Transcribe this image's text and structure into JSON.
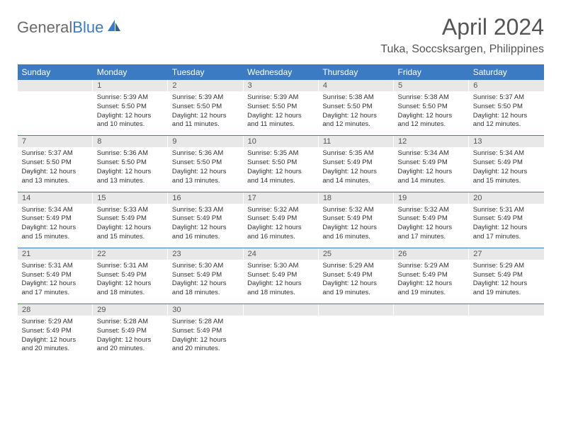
{
  "logo": {
    "g": "General",
    "b": "Blue"
  },
  "title": "April 2024",
  "location": "Tuka, Soccsksargen, Philippines",
  "colors": {
    "header_bg": "#3b7bc4",
    "header_fg": "#ffffff",
    "daynum_bg": "#e8e8e8",
    "text": "#333333",
    "logo_gray": "#6b6b6b",
    "logo_blue": "#3b7bc4"
  },
  "weekdays": [
    "Sunday",
    "Monday",
    "Tuesday",
    "Wednesday",
    "Thursday",
    "Friday",
    "Saturday"
  ],
  "weeks": [
    {
      "nums": [
        "",
        "1",
        "2",
        "3",
        "4",
        "5",
        "6"
      ],
      "cells": [
        null,
        {
          "sr": "Sunrise: 5:39 AM",
          "ss": "Sunset: 5:50 PM",
          "d1": "Daylight: 12 hours",
          "d2": "and 10 minutes."
        },
        {
          "sr": "Sunrise: 5:39 AM",
          "ss": "Sunset: 5:50 PM",
          "d1": "Daylight: 12 hours",
          "d2": "and 11 minutes."
        },
        {
          "sr": "Sunrise: 5:39 AM",
          "ss": "Sunset: 5:50 PM",
          "d1": "Daylight: 12 hours",
          "d2": "and 11 minutes."
        },
        {
          "sr": "Sunrise: 5:38 AM",
          "ss": "Sunset: 5:50 PM",
          "d1": "Daylight: 12 hours",
          "d2": "and 12 minutes."
        },
        {
          "sr": "Sunrise: 5:38 AM",
          "ss": "Sunset: 5:50 PM",
          "d1": "Daylight: 12 hours",
          "d2": "and 12 minutes."
        },
        {
          "sr": "Sunrise: 5:37 AM",
          "ss": "Sunset: 5:50 PM",
          "d1": "Daylight: 12 hours",
          "d2": "and 12 minutes."
        }
      ]
    },
    {
      "nums": [
        "7",
        "8",
        "9",
        "10",
        "11",
        "12",
        "13"
      ],
      "cells": [
        {
          "sr": "Sunrise: 5:37 AM",
          "ss": "Sunset: 5:50 PM",
          "d1": "Daylight: 12 hours",
          "d2": "and 13 minutes."
        },
        {
          "sr": "Sunrise: 5:36 AM",
          "ss": "Sunset: 5:50 PM",
          "d1": "Daylight: 12 hours",
          "d2": "and 13 minutes."
        },
        {
          "sr": "Sunrise: 5:36 AM",
          "ss": "Sunset: 5:50 PM",
          "d1": "Daylight: 12 hours",
          "d2": "and 13 minutes."
        },
        {
          "sr": "Sunrise: 5:35 AM",
          "ss": "Sunset: 5:50 PM",
          "d1": "Daylight: 12 hours",
          "d2": "and 14 minutes."
        },
        {
          "sr": "Sunrise: 5:35 AM",
          "ss": "Sunset: 5:49 PM",
          "d1": "Daylight: 12 hours",
          "d2": "and 14 minutes."
        },
        {
          "sr": "Sunrise: 5:34 AM",
          "ss": "Sunset: 5:49 PM",
          "d1": "Daylight: 12 hours",
          "d2": "and 14 minutes."
        },
        {
          "sr": "Sunrise: 5:34 AM",
          "ss": "Sunset: 5:49 PM",
          "d1": "Daylight: 12 hours",
          "d2": "and 15 minutes."
        }
      ]
    },
    {
      "nums": [
        "14",
        "15",
        "16",
        "17",
        "18",
        "19",
        "20"
      ],
      "cells": [
        {
          "sr": "Sunrise: 5:34 AM",
          "ss": "Sunset: 5:49 PM",
          "d1": "Daylight: 12 hours",
          "d2": "and 15 minutes."
        },
        {
          "sr": "Sunrise: 5:33 AM",
          "ss": "Sunset: 5:49 PM",
          "d1": "Daylight: 12 hours",
          "d2": "and 15 minutes."
        },
        {
          "sr": "Sunrise: 5:33 AM",
          "ss": "Sunset: 5:49 PM",
          "d1": "Daylight: 12 hours",
          "d2": "and 16 minutes."
        },
        {
          "sr": "Sunrise: 5:32 AM",
          "ss": "Sunset: 5:49 PM",
          "d1": "Daylight: 12 hours",
          "d2": "and 16 minutes."
        },
        {
          "sr": "Sunrise: 5:32 AM",
          "ss": "Sunset: 5:49 PM",
          "d1": "Daylight: 12 hours",
          "d2": "and 16 minutes."
        },
        {
          "sr": "Sunrise: 5:32 AM",
          "ss": "Sunset: 5:49 PM",
          "d1": "Daylight: 12 hours",
          "d2": "and 17 minutes."
        },
        {
          "sr": "Sunrise: 5:31 AM",
          "ss": "Sunset: 5:49 PM",
          "d1": "Daylight: 12 hours",
          "d2": "and 17 minutes."
        }
      ]
    },
    {
      "nums": [
        "21",
        "22",
        "23",
        "24",
        "25",
        "26",
        "27"
      ],
      "cells": [
        {
          "sr": "Sunrise: 5:31 AM",
          "ss": "Sunset: 5:49 PM",
          "d1": "Daylight: 12 hours",
          "d2": "and 17 minutes."
        },
        {
          "sr": "Sunrise: 5:31 AM",
          "ss": "Sunset: 5:49 PM",
          "d1": "Daylight: 12 hours",
          "d2": "and 18 minutes."
        },
        {
          "sr": "Sunrise: 5:30 AM",
          "ss": "Sunset: 5:49 PM",
          "d1": "Daylight: 12 hours",
          "d2": "and 18 minutes."
        },
        {
          "sr": "Sunrise: 5:30 AM",
          "ss": "Sunset: 5:49 PM",
          "d1": "Daylight: 12 hours",
          "d2": "and 18 minutes."
        },
        {
          "sr": "Sunrise: 5:29 AM",
          "ss": "Sunset: 5:49 PM",
          "d1": "Daylight: 12 hours",
          "d2": "and 19 minutes."
        },
        {
          "sr": "Sunrise: 5:29 AM",
          "ss": "Sunset: 5:49 PM",
          "d1": "Daylight: 12 hours",
          "d2": "and 19 minutes."
        },
        {
          "sr": "Sunrise: 5:29 AM",
          "ss": "Sunset: 5:49 PM",
          "d1": "Daylight: 12 hours",
          "d2": "and 19 minutes."
        }
      ]
    },
    {
      "nums": [
        "28",
        "29",
        "30",
        "",
        "",
        "",
        ""
      ],
      "cells": [
        {
          "sr": "Sunrise: 5:29 AM",
          "ss": "Sunset: 5:49 PM",
          "d1": "Daylight: 12 hours",
          "d2": "and 20 minutes."
        },
        {
          "sr": "Sunrise: 5:28 AM",
          "ss": "Sunset: 5:49 PM",
          "d1": "Daylight: 12 hours",
          "d2": "and 20 minutes."
        },
        {
          "sr": "Sunrise: 5:28 AM",
          "ss": "Sunset: 5:49 PM",
          "d1": "Daylight: 12 hours",
          "d2": "and 20 minutes."
        },
        null,
        null,
        null,
        null
      ]
    }
  ]
}
